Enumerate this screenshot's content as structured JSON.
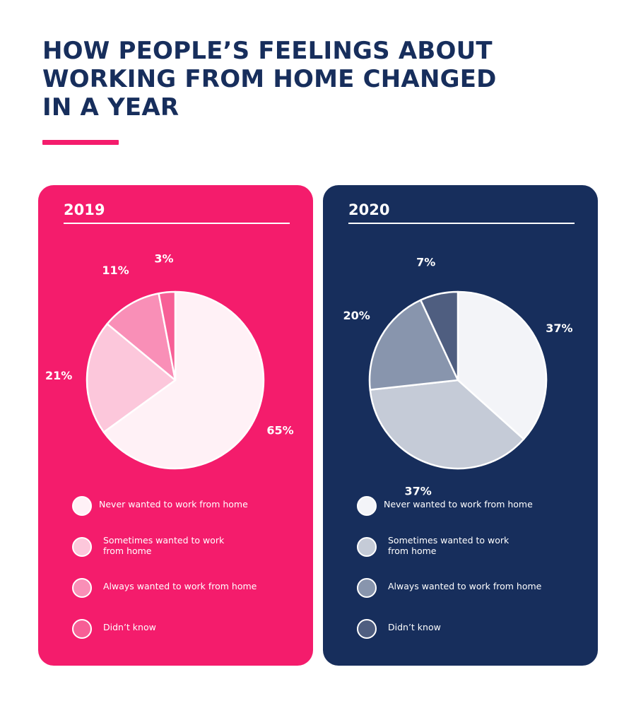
{
  "title_lines": [
    "HOW PEOPLE’S FEELINGS ABOUT",
    "WORKING FROM HOME CHANGED",
    "IN A YEAR"
  ],
  "chart_data": [
    {
      "type": "pie",
      "title": "2019",
      "categories": [
        "Never wanted to work from home",
        "Sometimes wanted to work from home",
        "Always wanted to work from home",
        "Didn’t know"
      ],
      "values": [
        65,
        21,
        11,
        3
      ],
      "labels": [
        "65%",
        "21%",
        "11%",
        "3%"
      ],
      "colors": [
        "#fff1f6",
        "#fcc7db",
        "#f98fb7",
        "#f75f96"
      ],
      "legend_position": "bottom"
    },
    {
      "type": "pie",
      "title": "2020",
      "categories": [
        "Never wanted to work from home",
        "Sometimes wanted to work from home",
        "Always wanted to work from home",
        "Didn’t know"
      ],
      "values": [
        37,
        37,
        20,
        7
      ],
      "labels": [
        "37%",
        "37%",
        "20%",
        "7%"
      ],
      "colors": [
        "#f3f4f8",
        "#c5cbd7",
        "#8895ad",
        "#4f5e80"
      ],
      "legend_position": "bottom"
    }
  ],
  "legend_labels": [
    [
      "Never wanted to work from home"
    ],
    [
      "Sometimes wanted to work",
      "from home"
    ],
    [
      "Always wanted to work from home"
    ],
    [
      "Didn’t know"
    ]
  ],
  "colors": {
    "accent": "#f41c6c",
    "navy": "#172e5c"
  }
}
